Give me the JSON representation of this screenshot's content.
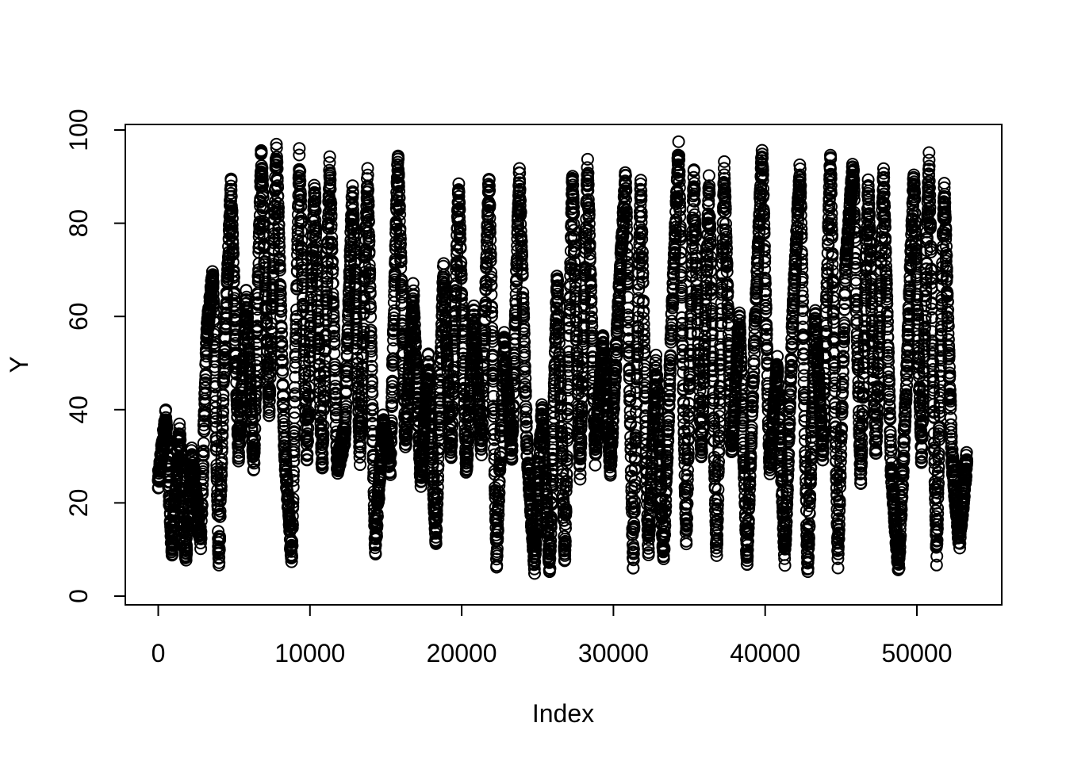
{
  "chart_data": {
    "type": "scatter",
    "title": "",
    "xlabel": "Index",
    "ylabel": "Y",
    "xlim": [
      -2000,
      55800
    ],
    "ylim": [
      -2,
      101
    ],
    "xticks": [
      0,
      10000,
      20000,
      30000,
      40000,
      50000
    ],
    "xtick_labels": [
      "0",
      "10000",
      "20000",
      "30000",
      "40000",
      "50000"
    ],
    "yticks": [
      0,
      20,
      40,
      60,
      80,
      100
    ],
    "ytick_labels": [
      "0",
      "20",
      "40",
      "60",
      "80",
      "100"
    ],
    "grid": false,
    "legend": "none",
    "marker": "open-circle",
    "n_points": 53500,
    "series": [
      {
        "color": "#000000",
        "x": [
          0,
          500,
          900,
          1400,
          1800,
          2200,
          2800,
          3200,
          3600,
          4000,
          4300,
          4800,
          5300,
          5800,
          6300,
          6800,
          7300,
          7800,
          8300,
          8800,
          9300,
          9800,
          10300,
          10800,
          11300,
          11800,
          12300,
          12800,
          13300,
          13800,
          14300,
          14800,
          15300,
          15800,
          16300,
          16800,
          17300,
          17800,
          18300,
          18800,
          19300,
          19800,
          20300,
          20800,
          21300,
          21800,
          22300,
          22800,
          23300,
          23800,
          24300,
          24800,
          25300,
          25800,
          26300,
          26800,
          27300,
          27800,
          28300,
          28800,
          29300,
          29800,
          30300,
          30800,
          31300,
          31800,
          32300,
          32800,
          33300,
          33800,
          34300,
          34800,
          35300,
          35800,
          36300,
          36800,
          37300,
          37800,
          38300,
          38800,
          39300,
          39800,
          40300,
          40800,
          41300,
          41800,
          42300,
          42800,
          43300,
          43800,
          44300,
          44800,
          45300,
          45800,
          46300,
          46800,
          47300,
          47800,
          48300,
          48800,
          49300,
          49800,
          50300,
          50800,
          51300,
          51800,
          52300,
          52800,
          53300
        ],
        "y": [
          24,
          38,
          10,
          35,
          8,
          30,
          12,
          56,
          68,
          7,
          46,
          88,
          30,
          64,
          28,
          95,
          40,
          96,
          33,
          8,
          94,
          30,
          88,
          27,
          92,
          28,
          35,
          87,
          30,
          90,
          10,
          37,
          28,
          95,
          32,
          65,
          25,
          50,
          12,
          70,
          30,
          88,
          27,
          60,
          32,
          90,
          8,
          55,
          30,
          91,
          32,
          7,
          40,
          6,
          69,
          8,
          90,
          27,
          92,
          30,
          55,
          28,
          60,
          90,
          7,
          88,
          10,
          50,
          8,
          55,
          96,
          12,
          90,
          30,
          88,
          8,
          92,
          30,
          60,
          8,
          55,
          95,
          28,
          50,
          8,
          58,
          92,
          5,
          60,
          30,
          94,
          8,
          70,
          92,
          25,
          88,
          30,
          90,
          28,
          6,
          45,
          90,
          30,
          93,
          8,
          88,
          30,
          12,
          30
        ]
      }
    ]
  }
}
